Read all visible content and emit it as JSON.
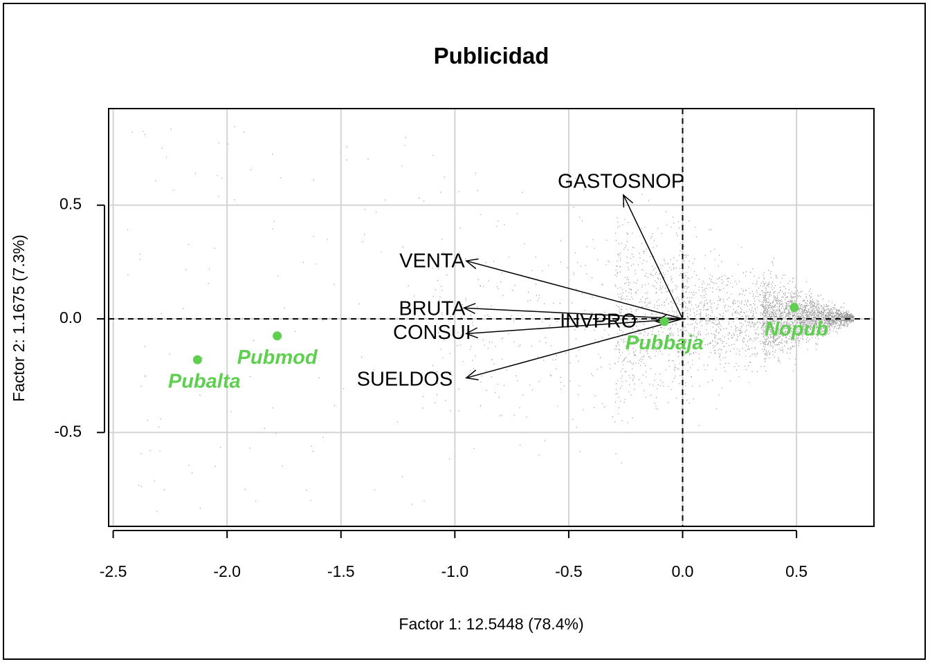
{
  "chart_data": {
    "type": "scatter",
    "title": "Publicidad",
    "xlabel": "Factor 1: 12.5448 (78.4%)",
    "ylabel": "Factor 2: 1.1675 (7.3%)",
    "xlim": [
      -2.52,
      0.84
    ],
    "ylim": [
      -0.913,
      0.925
    ],
    "xticks": [
      -2.5,
      -2.0,
      -1.5,
      -1.0,
      -0.5,
      0.0,
      0.5
    ],
    "xtick_labels": [
      "-2.5",
      "-2.0",
      "-1.5",
      "-1.0",
      "-0.5",
      "0.0",
      "0.5"
    ],
    "yticks": [
      -0.5,
      0.0,
      0.5
    ],
    "ytick_labels": [
      "-0.5",
      "0.0",
      "0.5"
    ],
    "grid": true,
    "reference_lines": {
      "x": 0,
      "y": 0,
      "style": "dashed"
    },
    "colors": {
      "points": "#999999",
      "categories": "#5fcf50",
      "arrows": "#000000",
      "grid": "#d3d3d3"
    },
    "variables": [
      {
        "name": "GASTOSNOP",
        "x": -0.26,
        "y": 0.545,
        "label_x": -0.27,
        "label_y": 0.6
      },
      {
        "name": "VENTA",
        "x": -0.95,
        "y": 0.255,
        "label_x": -1.1,
        "label_y": 0.25
      },
      {
        "name": "BRUTA",
        "x": -0.96,
        "y": 0.048,
        "label_x": -1.1,
        "label_y": 0.04
      },
      {
        "name": "CONSUI",
        "x": -0.95,
        "y": -0.065,
        "label_x": -1.1,
        "label_y": -0.065
      },
      {
        "name": "SUELDOS",
        "x": -0.95,
        "y": -0.26,
        "label_x": -1.22,
        "label_y": -0.27
      },
      {
        "name": "INVPRO",
        "x": -0.12,
        "y": -0.01,
        "label_x": -0.37,
        "label_y": -0.015
      }
    ],
    "categories": [
      {
        "name": "Pubalta",
        "x": -2.13,
        "y": -0.18,
        "label_x": -2.1,
        "label_y": -0.28
      },
      {
        "name": "Pubmod",
        "x": -1.78,
        "y": -0.075,
        "label_x": -1.78,
        "label_y": -0.175
      },
      {
        "name": "Pubbaja",
        "x": -0.08,
        "y": -0.012,
        "label_x": -0.08,
        "label_y": -0.11
      },
      {
        "name": "Nopub",
        "x": 0.49,
        "y": 0.05,
        "label_x": 0.5,
        "label_y": -0.05
      }
    ]
  }
}
